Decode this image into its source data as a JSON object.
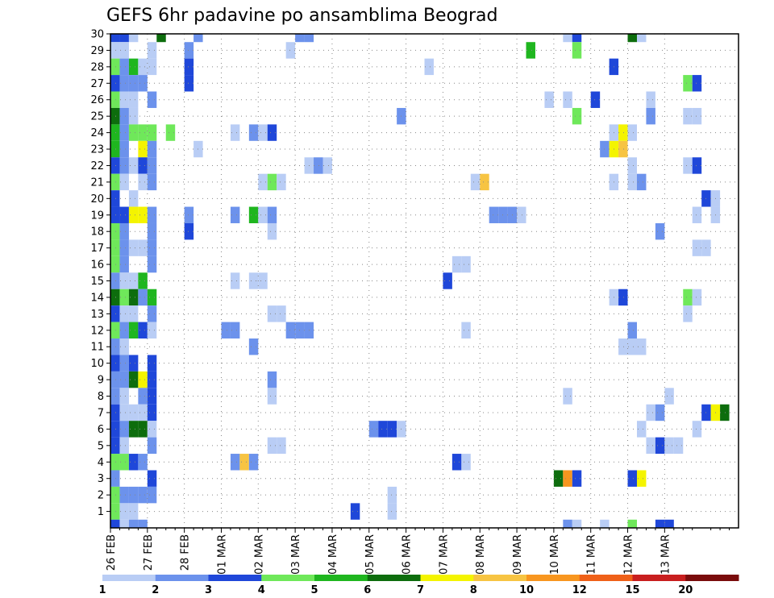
{
  "chart_data": {
    "type": "heatmap",
    "title": "GEFS 6hr padavine po ansamblima Beograd",
    "xlabel": "",
    "ylabel": "",
    "x_tick_labels": [
      "26 FEB",
      "27 FEB",
      "28 FEB",
      "01 MAR",
      "02 MAR",
      "03 MAR",
      "04 MAR",
      "05 MAR",
      "06 MAR",
      "07 MAR",
      "08 MAR",
      "09 MAR",
      "10 MAR",
      "11 MAR",
      "12 MAR",
      "13 MAR"
    ],
    "y_tick_labels": [
      "1",
      "2",
      "3",
      "4",
      "5",
      "6",
      "7",
      "8",
      "9",
      "10",
      "11",
      "12",
      "13",
      "14",
      "15",
      "16",
      "17",
      "18",
      "19",
      "20",
      "21",
      "22",
      "23",
      "24",
      "25",
      "26",
      "27",
      "28",
      "29",
      "30"
    ],
    "ylim": [
      0,
      30
    ],
    "steps_per_day": 4,
    "total_steps": 68,
    "grid": true,
    "colorbar": {
      "labels": [
        "1",
        "2",
        "3",
        "4",
        "5",
        "6",
        "7",
        "8",
        "10",
        "12",
        "15",
        "20"
      ],
      "colors": [
        "#b9cdf5",
        "#6c92ec",
        "#1f47d9",
        "#6fe85a",
        "#1fb61f",
        "#0d6d0d",
        "#f4f400",
        "#f7c442",
        "#f8961f",
        "#ef6018",
        "#c81e1e",
        "#7a0c0c"
      ],
      "placement": "bottom"
    },
    "cells": [
      [
        0,
        30,
        2
      ],
      [
        1,
        30,
        2
      ],
      [
        2,
        30,
        0
      ],
      [
        5,
        30,
        5
      ],
      [
        9,
        30,
        1
      ],
      [
        20,
        30,
        1
      ],
      [
        21,
        30,
        1
      ],
      [
        49,
        30,
        0
      ],
      [
        50,
        30,
        2
      ],
      [
        56,
        30,
        5
      ],
      [
        57,
        30,
        0
      ],
      [
        0,
        29,
        0
      ],
      [
        1,
        29,
        0
      ],
      [
        4,
        29,
        0
      ],
      [
        8,
        29,
        1
      ],
      [
        19,
        29,
        0
      ],
      [
        45,
        29,
        4
      ],
      [
        50,
        29,
        3
      ],
      [
        0,
        28,
        3
      ],
      [
        1,
        28,
        1
      ],
      [
        2,
        28,
        4
      ],
      [
        3,
        28,
        0
      ],
      [
        4,
        28,
        0
      ],
      [
        8,
        28,
        2
      ],
      [
        34,
        28,
        0
      ],
      [
        54,
        28,
        2
      ],
      [
        0,
        27,
        2
      ],
      [
        1,
        27,
        1
      ],
      [
        2,
        27,
        1
      ],
      [
        3,
        27,
        1
      ],
      [
        8,
        27,
        2
      ],
      [
        62,
        27,
        3
      ],
      [
        63,
        27,
        2
      ],
      [
        0,
        26,
        3
      ],
      [
        1,
        26,
        0
      ],
      [
        2,
        26,
        0
      ],
      [
        4,
        26,
        1
      ],
      [
        47,
        26,
        0
      ],
      [
        49,
        26,
        0
      ],
      [
        52,
        26,
        2
      ],
      [
        58,
        26,
        0
      ],
      [
        0,
        25,
        5
      ],
      [
        1,
        25,
        1
      ],
      [
        2,
        25,
        0
      ],
      [
        31,
        25,
        1
      ],
      [
        50,
        25,
        3
      ],
      [
        58,
        25,
        1
      ],
      [
        62,
        25,
        0
      ],
      [
        63,
        25,
        0
      ],
      [
        0,
        24,
        4
      ],
      [
        1,
        24,
        1
      ],
      [
        2,
        24,
        3
      ],
      [
        3,
        24,
        3
      ],
      [
        4,
        24,
        3
      ],
      [
        6,
        24,
        3
      ],
      [
        13,
        24,
        0
      ],
      [
        15,
        24,
        1
      ],
      [
        16,
        24,
        0
      ],
      [
        17,
        24,
        2
      ],
      [
        54,
        24,
        0
      ],
      [
        55,
        24,
        6
      ],
      [
        56,
        24,
        0
      ],
      [
        0,
        23,
        4
      ],
      [
        1,
        23,
        1
      ],
      [
        3,
        23,
        6
      ],
      [
        4,
        23,
        1
      ],
      [
        9,
        23,
        0
      ],
      [
        53,
        23,
        1
      ],
      [
        54,
        23,
        6
      ],
      [
        55,
        23,
        7
      ],
      [
        0,
        22,
        2
      ],
      [
        1,
        22,
        1
      ],
      [
        2,
        22,
        0
      ],
      [
        3,
        22,
        2
      ],
      [
        4,
        22,
        1
      ],
      [
        21,
        22,
        0
      ],
      [
        22,
        22,
        1
      ],
      [
        23,
        22,
        0
      ],
      [
        56,
        22,
        0
      ],
      [
        62,
        22,
        0
      ],
      [
        63,
        22,
        2
      ],
      [
        0,
        21,
        3
      ],
      [
        1,
        21,
        0
      ],
      [
        3,
        21,
        0
      ],
      [
        4,
        21,
        1
      ],
      [
        16,
        21,
        0
      ],
      [
        17,
        21,
        3
      ],
      [
        18,
        21,
        0
      ],
      [
        39,
        21,
        0
      ],
      [
        40,
        21,
        7
      ],
      [
        54,
        21,
        0
      ],
      [
        56,
        21,
        0
      ],
      [
        57,
        21,
        1
      ],
      [
        0,
        20,
        2
      ],
      [
        2,
        20,
        0
      ],
      [
        64,
        20,
        2
      ],
      [
        65,
        20,
        0
      ],
      [
        0,
        19,
        2
      ],
      [
        1,
        19,
        2
      ],
      [
        2,
        19,
        6
      ],
      [
        3,
        19,
        6
      ],
      [
        4,
        19,
        1
      ],
      [
        8,
        19,
        1
      ],
      [
        13,
        19,
        1
      ],
      [
        15,
        19,
        4
      ],
      [
        16,
        19,
        0
      ],
      [
        17,
        19,
        1
      ],
      [
        41,
        19,
        1
      ],
      [
        42,
        19,
        1
      ],
      [
        43,
        19,
        1
      ],
      [
        44,
        19,
        0
      ],
      [
        63,
        19,
        0
      ],
      [
        65,
        19,
        0
      ],
      [
        0,
        18,
        3
      ],
      [
        1,
        18,
        1
      ],
      [
        4,
        18,
        1
      ],
      [
        8,
        18,
        2
      ],
      [
        17,
        18,
        0
      ],
      [
        59,
        18,
        1
      ],
      [
        0,
        17,
        3
      ],
      [
        1,
        17,
        1
      ],
      [
        2,
        17,
        0
      ],
      [
        3,
        17,
        0
      ],
      [
        4,
        17,
        1
      ],
      [
        63,
        17,
        0
      ],
      [
        64,
        17,
        0
      ],
      [
        0,
        16,
        3
      ],
      [
        1,
        16,
        1
      ],
      [
        4,
        16,
        1
      ],
      [
        37,
        16,
        0
      ],
      [
        38,
        16,
        0
      ],
      [
        0,
        15,
        1
      ],
      [
        1,
        15,
        0
      ],
      [
        2,
        15,
        0
      ],
      [
        3,
        15,
        4
      ],
      [
        13,
        15,
        0
      ],
      [
        15,
        15,
        0
      ],
      [
        16,
        15,
        0
      ],
      [
        36,
        15,
        2
      ],
      [
        0,
        14,
        5
      ],
      [
        1,
        14,
        3
      ],
      [
        2,
        14,
        5
      ],
      [
        3,
        14,
        1
      ],
      [
        4,
        14,
        4
      ],
      [
        54,
        14,
        0
      ],
      [
        55,
        14,
        2
      ],
      [
        62,
        14,
        3
      ],
      [
        63,
        14,
        0
      ],
      [
        0,
        13,
        2
      ],
      [
        1,
        13,
        0
      ],
      [
        2,
        13,
        0
      ],
      [
        4,
        13,
        1
      ],
      [
        17,
        13,
        0
      ],
      [
        18,
        13,
        0
      ],
      [
        62,
        13,
        0
      ],
      [
        0,
        12,
        3
      ],
      [
        1,
        12,
        1
      ],
      [
        2,
        12,
        4
      ],
      [
        3,
        12,
        2
      ],
      [
        4,
        12,
        0
      ],
      [
        12,
        12,
        1
      ],
      [
        13,
        12,
        1
      ],
      [
        19,
        12,
        1
      ],
      [
        20,
        12,
        1
      ],
      [
        21,
        12,
        1
      ],
      [
        38,
        12,
        0
      ],
      [
        56,
        12,
        1
      ],
      [
        0,
        11,
        1
      ],
      [
        1,
        11,
        0
      ],
      [
        15,
        11,
        1
      ],
      [
        55,
        11,
        0
      ],
      [
        56,
        11,
        0
      ],
      [
        57,
        11,
        0
      ],
      [
        0,
        10,
        2
      ],
      [
        1,
        10,
        1
      ],
      [
        2,
        10,
        2
      ],
      [
        4,
        10,
        2
      ],
      [
        0,
        9,
        1
      ],
      [
        1,
        9,
        1
      ],
      [
        2,
        9,
        5
      ],
      [
        3,
        9,
        6
      ],
      [
        4,
        9,
        2
      ],
      [
        17,
        9,
        1
      ],
      [
        0,
        8,
        1
      ],
      [
        1,
        8,
        0
      ],
      [
        3,
        8,
        1
      ],
      [
        4,
        8,
        2
      ],
      [
        17,
        8,
        0
      ],
      [
        49,
        8,
        0
      ],
      [
        60,
        8,
        0
      ],
      [
        0,
        7,
        2
      ],
      [
        1,
        7,
        0
      ],
      [
        2,
        7,
        0
      ],
      [
        3,
        7,
        0
      ],
      [
        4,
        7,
        2
      ],
      [
        58,
        7,
        0
      ],
      [
        59,
        7,
        1
      ],
      [
        64,
        7,
        2
      ],
      [
        65,
        7,
        6
      ],
      [
        66,
        7,
        5
      ],
      [
        0,
        6,
        2
      ],
      [
        1,
        6,
        1
      ],
      [
        2,
        6,
        5
      ],
      [
        3,
        6,
        5
      ],
      [
        4,
        6,
        0
      ],
      [
        28,
        6,
        1
      ],
      [
        29,
        6,
        2
      ],
      [
        30,
        6,
        2
      ],
      [
        31,
        6,
        0
      ],
      [
        57,
        6,
        0
      ],
      [
        63,
        6,
        0
      ],
      [
        0,
        5,
        2
      ],
      [
        1,
        5,
        0
      ],
      [
        4,
        5,
        1
      ],
      [
        17,
        5,
        0
      ],
      [
        18,
        5,
        0
      ],
      [
        58,
        5,
        0
      ],
      [
        59,
        5,
        2
      ],
      [
        60,
        5,
        0
      ],
      [
        61,
        5,
        0
      ],
      [
        0,
        4,
        3
      ],
      [
        1,
        4,
        3
      ],
      [
        2,
        4,
        2
      ],
      [
        3,
        4,
        1
      ],
      [
        13,
        4,
        1
      ],
      [
        14,
        4,
        7
      ],
      [
        15,
        4,
        1
      ],
      [
        37,
        4,
        2
      ],
      [
        38,
        4,
        0
      ],
      [
        0,
        3,
        1
      ],
      [
        4,
        3,
        2
      ],
      [
        48,
        3,
        5
      ],
      [
        49,
        3,
        8
      ],
      [
        50,
        3,
        2
      ],
      [
        56,
        3,
        2
      ],
      [
        57,
        3,
        6
      ],
      [
        0,
        2,
        3
      ],
      [
        1,
        2,
        1
      ],
      [
        2,
        2,
        1
      ],
      [
        3,
        2,
        1
      ],
      [
        4,
        2,
        1
      ],
      [
        30,
        2,
        0
      ],
      [
        0,
        1,
        3
      ],
      [
        1,
        1,
        0
      ],
      [
        2,
        1,
        0
      ],
      [
        26,
        1,
        2
      ],
      [
        30,
        1,
        0
      ],
      [
        0,
        0,
        2
      ],
      [
        1,
        0,
        0
      ],
      [
        2,
        0,
        1
      ],
      [
        3,
        0,
        1
      ],
      [
        49,
        0,
        1
      ],
      [
        50,
        0,
        0
      ],
      [
        53,
        0,
        0
      ],
      [
        56,
        0,
        3
      ],
      [
        59,
        0,
        2
      ],
      [
        60,
        0,
        2
      ]
    ]
  }
}
